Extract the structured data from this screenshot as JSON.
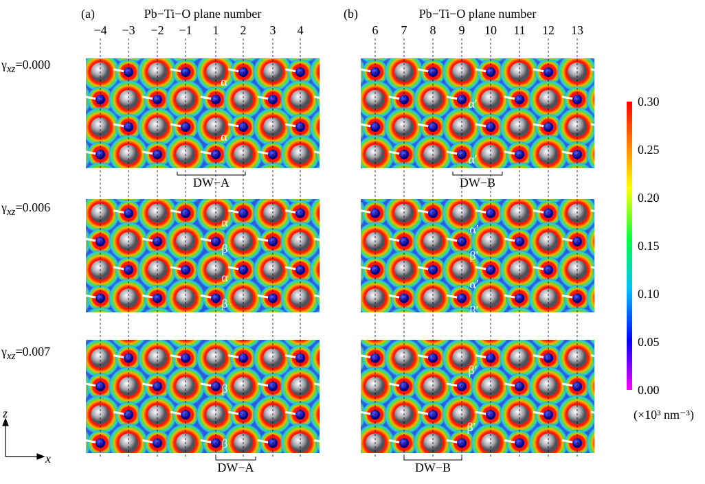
{
  "panels": [
    {
      "label": "(a)",
      "axis_title": "Pb−Ti−O plane number",
      "planes": [
        "−4",
        "−3",
        "−2",
        "−1",
        "1",
        "2",
        "3",
        "4"
      ],
      "rows": [
        {
          "greek": [
            "α",
            "α"
          ],
          "domain_wall": "DW−A"
        },
        {
          "greek": [
            "α",
            "β",
            "α",
            "β"
          ]
        },
        {
          "greek": [
            "β",
            "β"
          ],
          "domain_wall": "DW−A"
        }
      ]
    },
    {
      "label": "(b)",
      "axis_title": "Pb−Ti−O plane number",
      "planes": [
        "6",
        "7",
        "8",
        "9",
        "10",
        "11",
        "12",
        "13"
      ],
      "rows": [
        {
          "greek": [
            "α′",
            "α′"
          ],
          "domain_wall": "DW−B"
        },
        {
          "greek": [
            "α′",
            "β′",
            "α′",
            "β′"
          ]
        },
        {
          "greek": [
            "β′",
            "β′"
          ],
          "domain_wall": "DW−B"
        }
      ]
    }
  ],
  "strain_labels": [
    {
      "symbol": "γ",
      "subscript": "xz",
      "value": "=0.000"
    },
    {
      "symbol": "γ",
      "subscript": "xz",
      "value": "=0.006"
    },
    {
      "symbol": "γ",
      "subscript": "xz",
      "value": "=0.007"
    }
  ],
  "colorbar": {
    "ticks": [
      "0.30",
      "0.25",
      "0.20",
      "0.15",
      "0.10",
      "0.05",
      "0.00"
    ],
    "unit": "(×10³ nm⁻³)"
  },
  "axes": {
    "vertical": "z",
    "horizontal": "x"
  }
}
